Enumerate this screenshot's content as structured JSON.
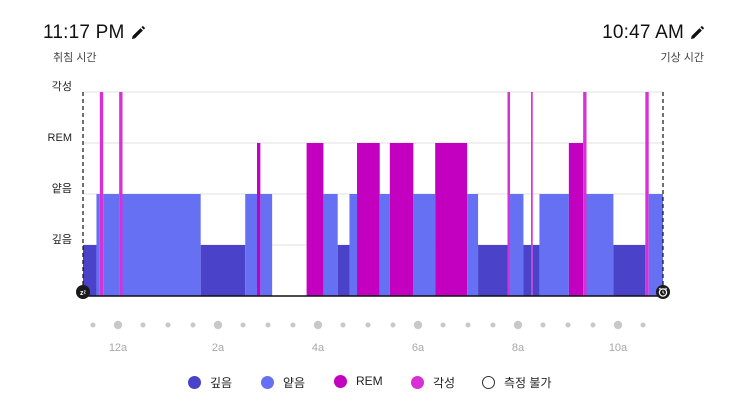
{
  "bedtime": {
    "time": "11:17 PM",
    "label": "취침 시간"
  },
  "waketime": {
    "time": "10:47 AM",
    "label": "기상 시간"
  },
  "colors": {
    "deep": "#4a42c8",
    "light": "#6670f2",
    "rem": "#c400c0",
    "awake": "#d830d6",
    "grid": "#e2e2e2",
    "tick_dot": "#c8c8c8",
    "axis_text": "#a8a8a8"
  },
  "icons": {
    "edit": "pencil-icon",
    "sleep_start": "zzz-icon",
    "alarm": "alarm-clock-icon"
  },
  "chart_data": {
    "type": "bar",
    "subtype": "sleep-stage-hypnogram",
    "x_unit": "minutes since 11:17 PM",
    "xlim": [
      0,
      690
    ],
    "x_ticks": [
      {
        "label": "12a",
        "x": 43
      },
      {
        "label": "2a",
        "x": 163
      },
      {
        "label": "4a",
        "x": 283
      },
      {
        "label": "6a",
        "x": 403
      },
      {
        "label": "8a",
        "x": 523
      },
      {
        "label": "10a",
        "x": 643
      }
    ],
    "y_levels": [
      "깊음",
      "얕음",
      "REM",
      "각성"
    ],
    "segments": [
      {
        "stage": "깊음",
        "start": 0,
        "end": 16
      },
      {
        "stage": "얕음",
        "start": 16,
        "end": 20
      },
      {
        "stage": "각성",
        "start": 20,
        "end": 24
      },
      {
        "stage": "얕음",
        "start": 24,
        "end": 43
      },
      {
        "stage": "각성",
        "start": 43,
        "end": 47
      },
      {
        "stage": "얕음",
        "start": 47,
        "end": 140
      },
      {
        "stage": "깊음",
        "start": 140,
        "end": 193
      },
      {
        "stage": "얕음",
        "start": 193,
        "end": 207
      },
      {
        "stage": "REM",
        "start": 207,
        "end": 211
      },
      {
        "stage": "얕음",
        "start": 211,
        "end": 225
      },
      {
        "stage": "측정 불가",
        "start": 225,
        "end": 266
      },
      {
        "stage": "REM",
        "start": 266,
        "end": 286
      },
      {
        "stage": "얕음",
        "start": 286,
        "end": 303
      },
      {
        "stage": "깊음",
        "start": 303,
        "end": 317
      },
      {
        "stage": "얕음",
        "start": 317,
        "end": 326
      },
      {
        "stage": "REM",
        "start": 326,
        "end": 353
      },
      {
        "stage": "얕음",
        "start": 353,
        "end": 365
      },
      {
        "stage": "REM",
        "start": 365,
        "end": 393
      },
      {
        "stage": "얕음",
        "start": 393,
        "end": 419
      },
      {
        "stage": "REM",
        "start": 419,
        "end": 457
      },
      {
        "stage": "얕음",
        "start": 457,
        "end": 470
      },
      {
        "stage": "깊음",
        "start": 470,
        "end": 505
      },
      {
        "stage": "각성",
        "start": 505,
        "end": 508
      },
      {
        "stage": "얕음",
        "start": 508,
        "end": 524
      },
      {
        "stage": "깊음",
        "start": 524,
        "end": 533
      },
      {
        "stage": "각성",
        "start": 533,
        "end": 535
      },
      {
        "stage": "깊음",
        "start": 535,
        "end": 543
      },
      {
        "stage": "얕음",
        "start": 543,
        "end": 578
      },
      {
        "stage": "REM",
        "start": 578,
        "end": 595
      },
      {
        "stage": "각성",
        "start": 595,
        "end": 599
      },
      {
        "stage": "얕음",
        "start": 599,
        "end": 631
      },
      {
        "stage": "깊음",
        "start": 631,
        "end": 669
      },
      {
        "stage": "각성",
        "start": 669,
        "end": 673
      },
      {
        "stage": "얕음",
        "start": 673,
        "end": 690
      }
    ]
  },
  "legend": [
    {
      "key": "deep",
      "label": "깊음"
    },
    {
      "key": "light",
      "label": "얕음"
    },
    {
      "key": "rem",
      "label": "REM"
    },
    {
      "key": "awake",
      "label": "각성"
    },
    {
      "key": "unmeasured",
      "label": "측정 불가"
    }
  ]
}
